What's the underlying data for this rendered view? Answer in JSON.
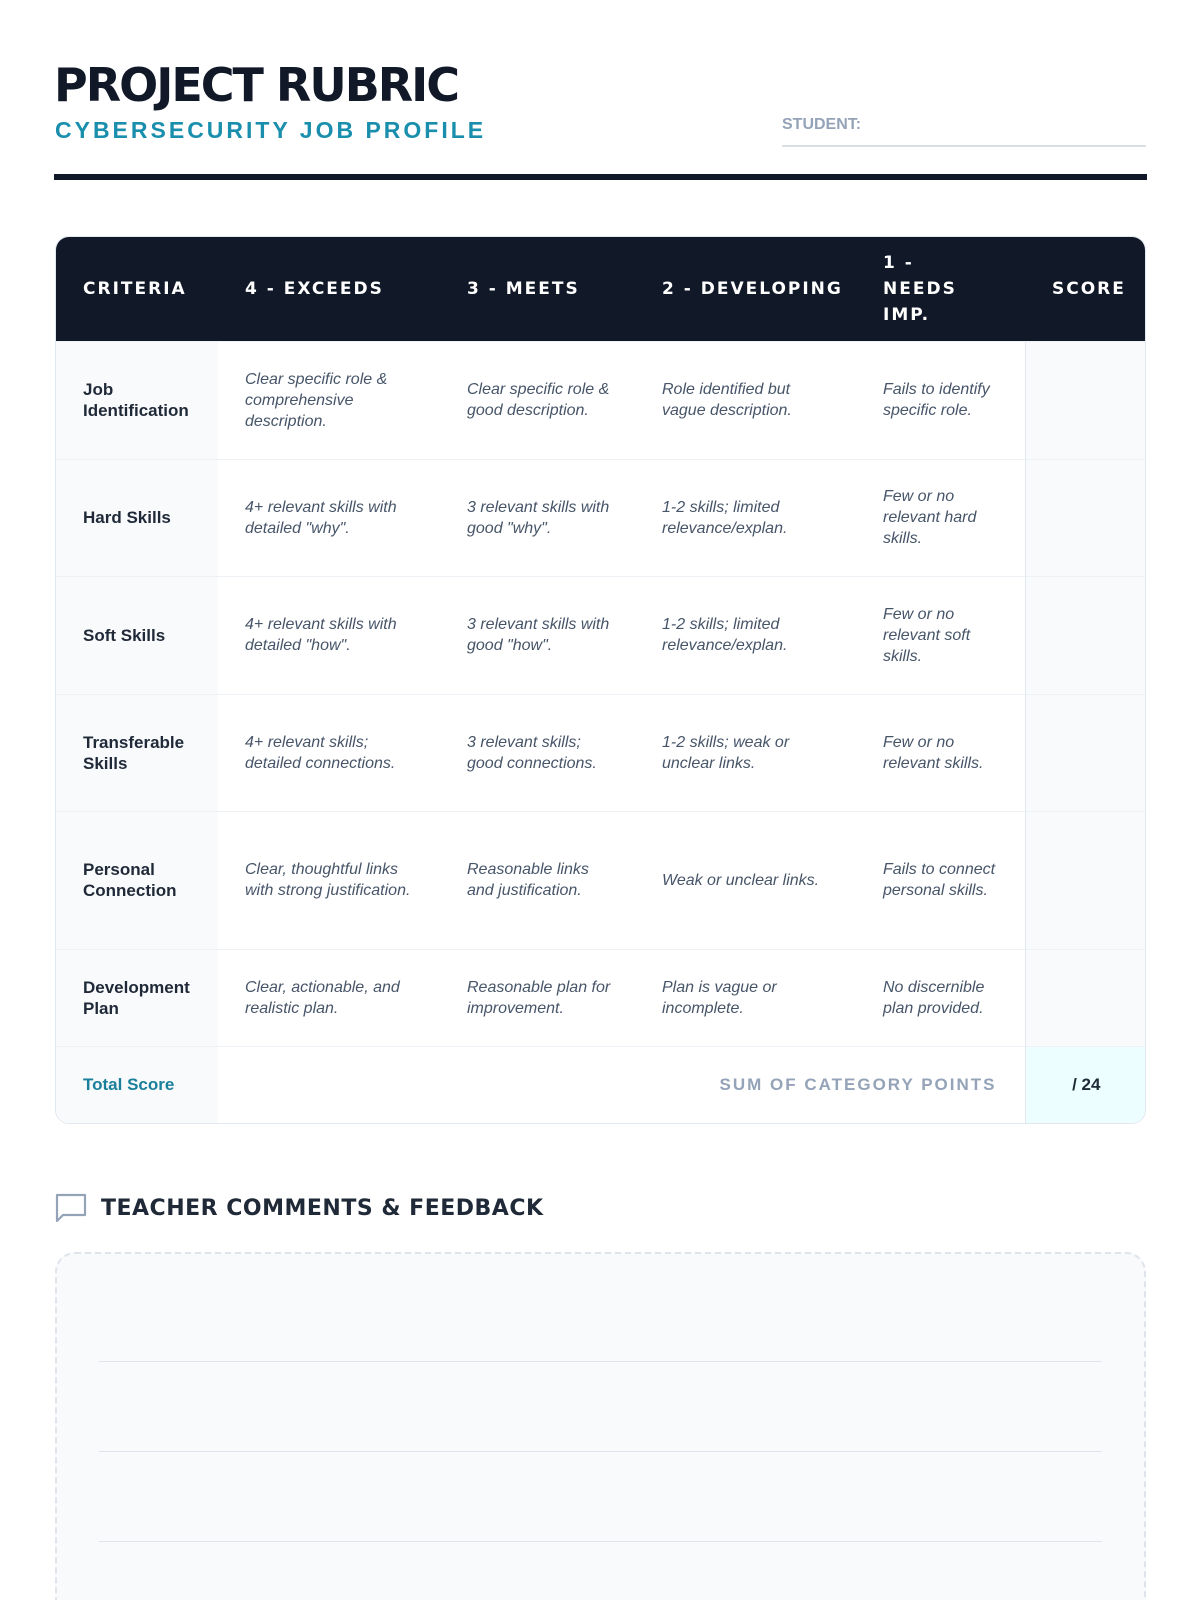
{
  "header": {
    "title": "PROJECT RUBRIC",
    "subtitle": "CYBERSECURITY JOB PROFILE",
    "student_label": "STUDENT:"
  },
  "table": {
    "columns": [
      "CRITERIA",
      "4 - EXCEEDS",
      "3 - MEETS",
      "2 - DEVELOPING",
      "1 - NEEDS IMP.",
      "SCORE"
    ],
    "rows": [
      {
        "criteria": "Job Identification",
        "exceeds": "Clear specific role & comprehensive description.",
        "meets": "Clear specific role & good description.",
        "developing": "Role identified but vague description.",
        "needs": "Fails to identify specific role.",
        "score": ""
      },
      {
        "criteria": "Hard Skills",
        "exceeds": "4+ relevant skills with detailed \"why\".",
        "meets": "3 relevant skills with good \"why\".",
        "developing": "1-2 skills; limited relevance/explan.",
        "needs": "Few or no relevant hard skills.",
        "score": ""
      },
      {
        "criteria": "Soft Skills",
        "exceeds": "4+ relevant skills with detailed \"how\".",
        "meets": "3 relevant skills with good \"how\".",
        "developing": "1-2 skills; limited relevance/explan.",
        "needs": "Few or no relevant soft skills.",
        "score": ""
      },
      {
        "criteria": "Transferable Skills",
        "exceeds": "4+ relevant skills; detailed connections.",
        "meets": "3 relevant skills; good connections.",
        "developing": "1-2 skills; weak or unclear links.",
        "needs": "Few or no relevant skills.",
        "score": ""
      },
      {
        "criteria": "Personal Connection",
        "exceeds": "Clear, thoughtful links with strong justification.",
        "meets": "Reasonable links and justification.",
        "developing": "Weak or unclear links.",
        "needs": "Fails to connect personal skills.",
        "score": ""
      },
      {
        "criteria": "Development Plan",
        "exceeds": "Clear, actionable, and realistic plan.",
        "meets": "Reasonable plan for improvement.",
        "developing": "Plan is vague or incomplete.",
        "needs": "No discernible plan provided.",
        "score": ""
      }
    ],
    "total": {
      "label": "Total Score",
      "sum_label": "SUM OF CATEGORY POINTS",
      "score": "/ 24"
    }
  },
  "comments": {
    "title": "TEACHER COMMENTS & FEEDBACK",
    "icon": "comment-icon"
  },
  "colors": {
    "dark": "#111827",
    "accent": "#1a8fad"
  }
}
